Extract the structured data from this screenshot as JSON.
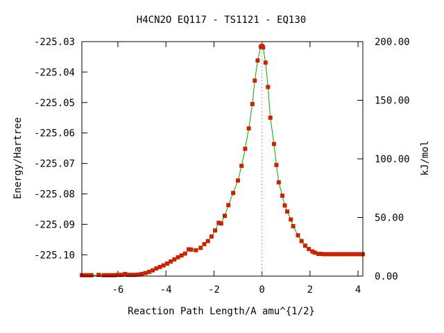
{
  "chart_data": {
    "type": "line",
    "title": "H4CN2O   EQ117 - TS1121 - EQ130",
    "xlabel": "Reaction Path Length/A amu^{1/2}",
    "ylabel": "Energy/Hartree",
    "y2label": "kJ/mol",
    "xlim": [
      -7.5,
      4.2
    ],
    "ylim": [
      -225.107,
      -225.03
    ],
    "y2lim": [
      0,
      200
    ],
    "x_ticks": [
      -6,
      -4,
      -2,
      0,
      2,
      4
    ],
    "y_ticks": [
      -225.03,
      -225.04,
      -225.05,
      -225.06,
      -225.07,
      -225.08,
      -225.09,
      -225.1
    ],
    "y2_ticks": [
      0,
      50,
      100,
      150,
      200
    ],
    "y2_tick_labels": [
      "0.00",
      "50.00",
      "100.00",
      "150.00",
      "200.00"
    ],
    "ts_marker_x": 0,
    "grid": false,
    "legend": "none",
    "colors": {
      "curve": "#00aa00",
      "points": "#cc2200",
      "marker_line": "#999999"
    },
    "series": [
      {
        "values_x": [
          -7.5,
          -7.35,
          -7.2,
          -7.1,
          -6.8,
          -6.6,
          -6.45,
          -6.3,
          -6.15,
          -6.0,
          -5.85,
          -5.7,
          -5.6,
          -5.45,
          -5.3,
          -5.15,
          -5.0,
          -4.85,
          -4.7,
          -4.55,
          -4.4,
          -4.25,
          -4.1,
          -3.95,
          -3.8,
          -3.65,
          -3.5,
          -3.35,
          -3.2,
          -3.05,
          -2.95,
          -2.75,
          -2.55,
          -2.4,
          -2.25,
          -2.1,
          -1.95,
          -1.8,
          -1.7,
          -1.55,
          -1.4,
          -1.2,
          -1.0,
          -0.85,
          -0.7,
          -0.55,
          -0.4,
          -0.3,
          -0.18,
          -0.05,
          0.0,
          0.05,
          0.15,
          0.25,
          0.35,
          0.5,
          0.6,
          0.7,
          0.85,
          0.95,
          1.05,
          1.2,
          1.3,
          1.5,
          1.65,
          1.8,
          1.95,
          2.1,
          2.2,
          2.35,
          2.45,
          2.6,
          2.75,
          2.9,
          3.0,
          3.15,
          3.3,
          3.45,
          3.6,
          3.75,
          3.9,
          4.05,
          4.2
        ],
        "values_y": [
          -225.1067,
          -225.1067,
          -225.1067,
          -225.1067,
          -225.1066,
          -225.1067,
          -225.1067,
          -225.1067,
          -225.1067,
          -225.1066,
          -225.1066,
          -225.1063,
          -225.1066,
          -225.1066,
          -225.1066,
          -225.1065,
          -225.1063,
          -225.106,
          -225.1056,
          -225.1051,
          -225.1045,
          -225.104,
          -225.1035,
          -225.1029,
          -225.1022,
          -225.1015,
          -225.1008,
          -225.1002,
          -225.0996,
          -225.0982,
          -225.0983,
          -225.0985,
          -225.0977,
          -225.0965,
          -225.0955,
          -225.094,
          -225.092,
          -225.0895,
          -225.0897,
          -225.0872,
          -225.0837,
          -225.0797,
          -225.0756,
          -225.0708,
          -225.0652,
          -225.0585,
          -225.0505,
          -225.0428,
          -225.0362,
          -225.0317,
          -225.0314,
          -225.0319,
          -225.0369,
          -225.0449,
          -225.055,
          -225.0636,
          -225.0705,
          -225.0762,
          -225.0806,
          -225.0838,
          -225.0858,
          -225.0884,
          -225.0906,
          -225.0936,
          -225.0955,
          -225.097,
          -225.0981,
          -225.0989,
          -225.0993,
          -225.0997,
          -225.0997,
          -225.0998,
          -225.0998,
          -225.0998,
          -225.0998,
          -225.0998,
          -225.0998,
          -225.0998,
          -225.0998,
          -225.0998,
          -225.0998,
          -225.0998,
          -225.0998
        ]
      }
    ]
  }
}
